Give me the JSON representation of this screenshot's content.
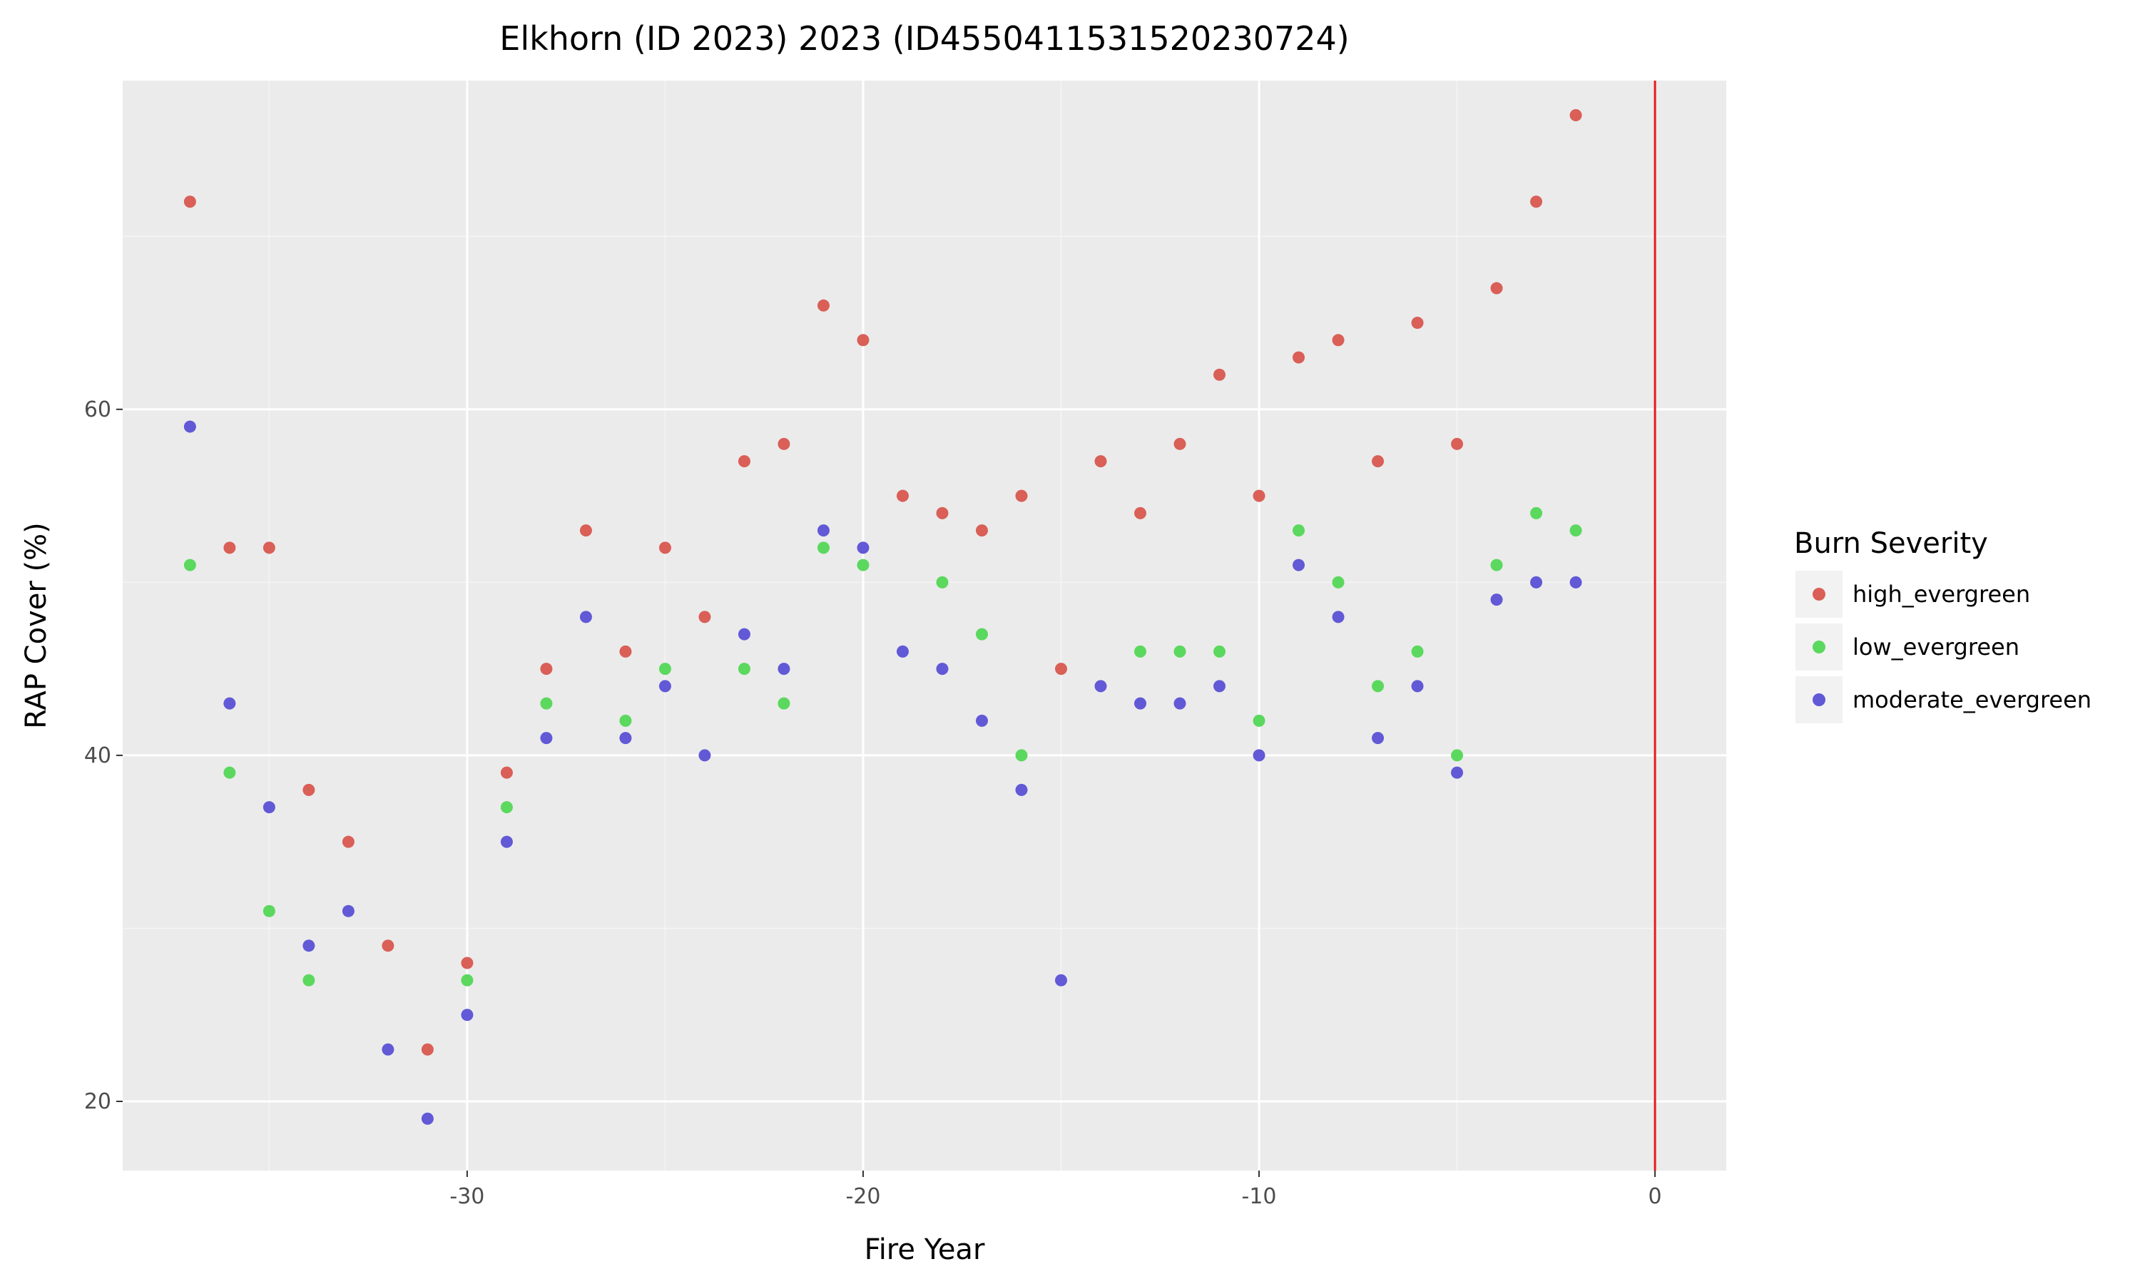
{
  "chart_data": {
    "type": "scatter",
    "title": "Elkhorn (ID 2023) 2023 (ID4550411531520230724)",
    "xlabel": "Fire Year",
    "ylabel": "RAP Cover (%)",
    "xlim": [
      -38.7,
      1.8
    ],
    "ylim": [
      16,
      79
    ],
    "x_ticks": [
      -30,
      -20,
      -10,
      0
    ],
    "y_ticks": [
      20,
      40,
      60
    ],
    "x_tick_labels": [
      "-30",
      "-20",
      "-10",
      "0"
    ],
    "y_tick_labels": [
      "20",
      "40",
      "60"
    ],
    "grid": true,
    "legend_title": "Burn Severity",
    "legend_position": "right",
    "reference_line": {
      "x": 0,
      "color": "#e41a1c"
    },
    "series": [
      {
        "name": "high_evergreen",
        "color": "#d95f57",
        "x": [
          -37,
          -36,
          -35,
          -34,
          -33,
          -32,
          -31,
          -30,
          -29,
          -28,
          -27,
          -26,
          -25,
          -24,
          -23,
          -22,
          -21,
          -20,
          -19,
          -18,
          -17,
          -16,
          -15,
          -14,
          -13,
          -12,
          -11,
          -10,
          -9,
          -8,
          -7,
          -6,
          -5,
          -4,
          -3,
          -2
        ],
        "y": [
          72,
          52,
          52,
          38,
          35,
          29,
          23,
          28,
          39,
          45,
          53,
          46,
          52,
          48,
          57,
          58,
          66,
          64,
          55,
          54,
          53,
          55,
          45,
          57,
          54,
          58,
          62,
          55,
          63,
          64,
          57,
          65,
          58,
          67,
          72,
          77
        ]
      },
      {
        "name": "low_evergreen",
        "color": "#5bd85e",
        "x": [
          -37,
          -36,
          -35,
          -34,
          -30,
          -29,
          -28,
          -26,
          -25,
          -23,
          -22,
          -21,
          -20,
          -18,
          -17,
          -16,
          -13,
          -12,
          -11,
          -10,
          -9,
          -8,
          -7,
          -6,
          -5,
          -4,
          -3,
          -2
        ],
        "y": [
          51,
          39,
          31,
          27,
          27,
          37,
          43,
          42,
          45,
          45,
          43,
          52,
          51,
          50,
          47,
          40,
          46,
          46,
          46,
          42,
          53,
          50,
          44,
          46,
          40,
          51,
          54,
          53
        ]
      },
      {
        "name": "moderate_evergreen",
        "color": "#6159d6",
        "x": [
          -37,
          -36,
          -35,
          -34,
          -33,
          -32,
          -31,
          -30,
          -29,
          -28,
          -27,
          -26,
          -25,
          -24,
          -23,
          -22,
          -21,
          -20,
          -19,
          -18,
          -17,
          -16,
          -15,
          -14,
          -13,
          -12,
          -11,
          -10,
          -9,
          -8,
          -7,
          -6,
          -5,
          -4,
          -3,
          -2
        ],
        "y": [
          59,
          43,
          37,
          29,
          31,
          23,
          19,
          25,
          35,
          41,
          48,
          41,
          44,
          40,
          47,
          45,
          53,
          52,
          46,
          45,
          42,
          38,
          27,
          44,
          43,
          43,
          44,
          40,
          51,
          48,
          41,
          44,
          39,
          49,
          50,
          50
        ]
      }
    ]
  }
}
